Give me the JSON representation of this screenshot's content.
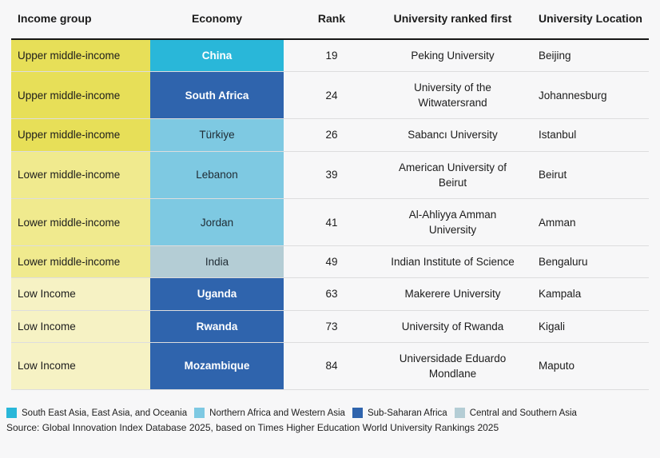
{
  "chart_data": {
    "type": "table",
    "columns": [
      {
        "key": "income_group",
        "label": "Income group"
      },
      {
        "key": "economy",
        "label": "Economy"
      },
      {
        "key": "rank",
        "label": "Rank"
      },
      {
        "key": "university",
        "label": "University ranked first"
      },
      {
        "key": "location",
        "label": "University Location"
      }
    ],
    "income_group_colors": {
      "Upper middle-income": "#e7df58",
      "Lower middle-income": "#f0ea8e",
      "Low Income": "#f6f2c4"
    },
    "regions": [
      {
        "key": "sea",
        "label": "South East Asia, East Asia, and Oceania",
        "color": "#29b7d9",
        "text_color": "#ffffff"
      },
      {
        "key": "nawa",
        "label": "Northern Africa and Western Asia",
        "color": "#7ec9e2",
        "text_color": "#1f2b33"
      },
      {
        "key": "ssa",
        "label": "Sub-Saharan Africa",
        "color": "#2f64ad",
        "text_color": "#ffffff"
      },
      {
        "key": "csa",
        "label": "Central and Southern Asia",
        "color": "#b4cdd5",
        "text_color": "#1f2b33"
      }
    ],
    "rows": [
      {
        "income_group": "Upper middle-income",
        "economy": "China",
        "region": "sea",
        "rank": 19,
        "university": "Peking University",
        "location": "Beijing"
      },
      {
        "income_group": "Upper middle-income",
        "economy": "South Africa",
        "region": "ssa",
        "rank": 24,
        "university": "University of the Witwatersrand",
        "location": "Johannesburg"
      },
      {
        "income_group": "Upper middle-income",
        "economy": "Türkiye",
        "region": "nawa",
        "rank": 26,
        "university": "Sabancı University",
        "location": "Istanbul"
      },
      {
        "income_group": "Lower middle-income",
        "economy": "Lebanon",
        "region": "nawa",
        "rank": 39,
        "university": "American University of Beirut",
        "location": "Beirut"
      },
      {
        "income_group": "Lower middle-income",
        "economy": "Jordan",
        "region": "nawa",
        "rank": 41,
        "university": "Al-Ahliyya Amman University",
        "location": "Amman"
      },
      {
        "income_group": "Lower middle-income",
        "economy": "India",
        "region": "csa",
        "rank": 49,
        "university": "Indian Institute of Science",
        "location": "Bengaluru"
      },
      {
        "income_group": "Low Income",
        "economy": "Uganda",
        "region": "ssa",
        "rank": 63,
        "university": "Makerere University",
        "location": "Kampala"
      },
      {
        "income_group": "Low Income",
        "economy": "Rwanda",
        "region": "ssa",
        "rank": 73,
        "university": "University of Rwanda",
        "location": "Kigali"
      },
      {
        "income_group": "Low Income",
        "economy": "Mozambique",
        "region": "ssa",
        "rank": 84,
        "university": "Universidade Eduardo Mondlane",
        "location": "Maputo"
      }
    ],
    "source": "Source: Global Innovation Index Database 2025, based on Times Higher Education World University Rankings 2025"
  },
  "colors": {
    "background": "#f7f7f8",
    "header_rule": "#161616",
    "body_text": "#1c1c1c"
  }
}
